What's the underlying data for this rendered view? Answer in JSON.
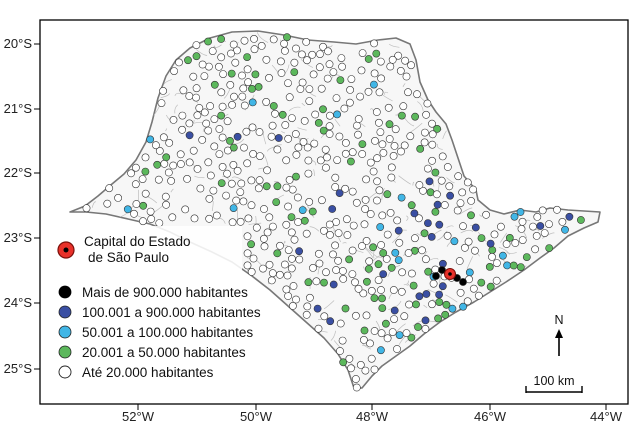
{
  "map": {
    "y_ticks": [
      "20°S",
      "21°S",
      "22°S",
      "23°S",
      "24°S",
      "25°S"
    ],
    "x_ticks": [
      "52°W",
      "50°W",
      "48°W",
      "46°W",
      "44°W"
    ],
    "north_label": "N",
    "scale_label": "100 km",
    "legend": {
      "capital": {
        "label_line1": "Capital do Estado",
        "label_line2": "de São Paulo",
        "color": "#e8312a"
      },
      "classes": [
        {
          "label": "Mais de 900.000 habitantes",
          "color": "#000000"
        },
        {
          "label": "100.001 a 900.000 habitantes",
          "color": "#3a4fa3"
        },
        {
          "label": "50.001 a 100.000 habitantes",
          "color": "#41b6e6"
        },
        {
          "label": "20.001 a 50.000 habitantes",
          "color": "#5cb85c"
        },
        {
          "label": "Até 20.000 habitantes",
          "color": "#ffffff"
        }
      ]
    }
  }
}
